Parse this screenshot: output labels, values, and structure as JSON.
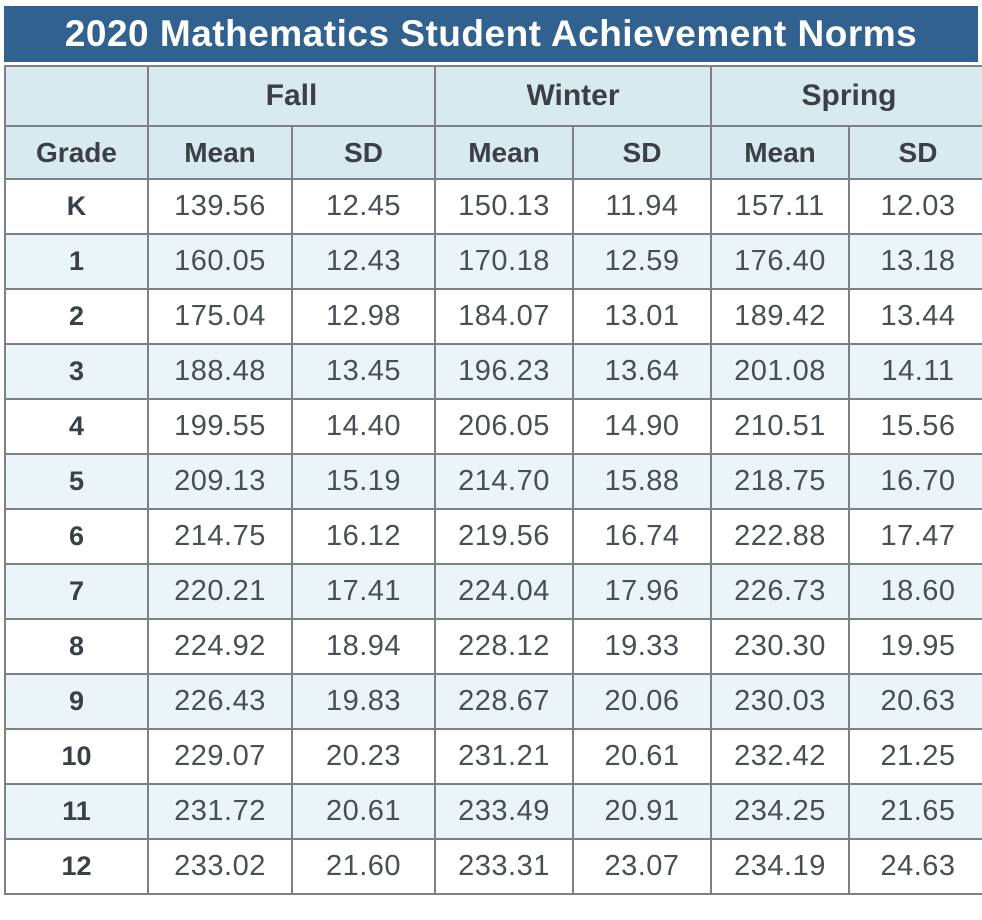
{
  "title_bar": {
    "text": "2020 Mathematics Student Achievement Norms"
  },
  "colors": {
    "title_bar_bg": "#31618f",
    "title_text": "#ffffff",
    "header_bg": "#d8e9ef",
    "alt_row_bg": "#ebf4f8",
    "border": "#7d8084",
    "header_text": "#3a4045",
    "body_text": "#4a4f54"
  },
  "table": {
    "season_headers": [
      "Fall",
      "Winter",
      "Spring"
    ],
    "grade_header": "Grade",
    "stat_headers": [
      "Mean",
      "SD"
    ]
  },
  "chart_data": {
    "type": "table",
    "title": "2020 Mathematics Student Achievement Norms",
    "column_groups": [
      {
        "label": "Fall",
        "columns": [
          "Mean",
          "SD"
        ]
      },
      {
        "label": "Winter",
        "columns": [
          "Mean",
          "SD"
        ]
      },
      {
        "label": "Spring",
        "columns": [
          "Mean",
          "SD"
        ]
      }
    ],
    "columns": [
      "Grade",
      "Fall Mean",
      "Fall SD",
      "Winter Mean",
      "Winter SD",
      "Spring Mean",
      "Spring SD"
    ],
    "rows": [
      [
        "K",
        "139.56",
        "12.45",
        "150.13",
        "11.94",
        "157.11",
        "12.03"
      ],
      [
        "1",
        "160.05",
        "12.43",
        "170.18",
        "12.59",
        "176.40",
        "13.18"
      ],
      [
        "2",
        "175.04",
        "12.98",
        "184.07",
        "13.01",
        "189.42",
        "13.44"
      ],
      [
        "3",
        "188.48",
        "13.45",
        "196.23",
        "13.64",
        "201.08",
        "14.11"
      ],
      [
        "4",
        "199.55",
        "14.40",
        "206.05",
        "14.90",
        "210.51",
        "15.56"
      ],
      [
        "5",
        "209.13",
        "15.19",
        "214.70",
        "15.88",
        "218.75",
        "16.70"
      ],
      [
        "6",
        "214.75",
        "16.12",
        "219.56",
        "16.74",
        "222.88",
        "17.47"
      ],
      [
        "7",
        "220.21",
        "17.41",
        "224.04",
        "17.96",
        "226.73",
        "18.60"
      ],
      [
        "8",
        "224.92",
        "18.94",
        "228.12",
        "19.33",
        "230.30",
        "19.95"
      ],
      [
        "9",
        "226.43",
        "19.83",
        "228.67",
        "20.06",
        "230.03",
        "20.63"
      ],
      [
        "10",
        "229.07",
        "20.23",
        "231.21",
        "20.61",
        "232.42",
        "21.25"
      ],
      [
        "11",
        "231.72",
        "20.61",
        "233.49",
        "20.91",
        "234.25",
        "21.65"
      ],
      [
        "12",
        "233.02",
        "21.60",
        "233.31",
        "23.07",
        "234.19",
        "24.63"
      ]
    ]
  }
}
